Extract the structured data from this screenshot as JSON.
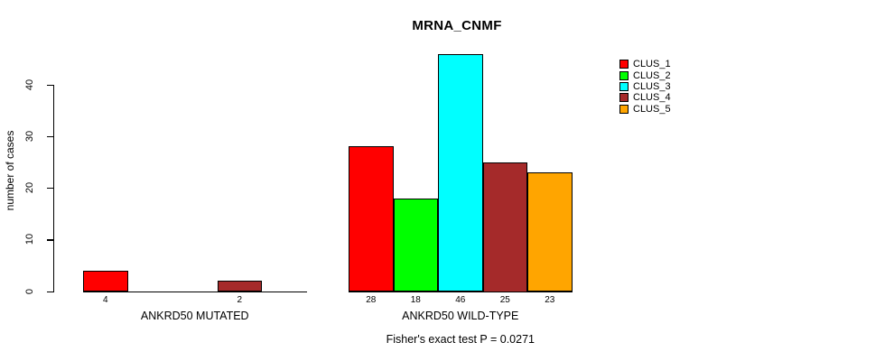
{
  "chart_data": {
    "type": "bar",
    "title": "MRNA_CNMF",
    "ylabel": "number of cases",
    "xlabel": "",
    "yticks": [
      0,
      10,
      20,
      30,
      40
    ],
    "ylim": [
      0,
      46.7
    ],
    "grid": false,
    "legend_position": "right",
    "background": "#ffffff",
    "axis_color": "#000000",
    "bar_border_color": "#000000",
    "series": [
      {
        "name": "CLUS_1",
        "color": "#ff0000"
      },
      {
        "name": "CLUS_2",
        "color": "#00ff00"
      },
      {
        "name": "CLUS_3",
        "color": "#00ffff"
      },
      {
        "name": "CLUS_4",
        "color": "#a52a2a"
      },
      {
        "name": "CLUS_5",
        "color": "#ffa500"
      }
    ],
    "groups": [
      {
        "label": "ANKRD50 MUTATED",
        "values": [
          4,
          0,
          0,
          2,
          0
        ]
      },
      {
        "label": "ANKRD50 WILD-TYPE",
        "values": [
          28,
          18,
          46,
          25,
          23
        ]
      }
    ],
    "subtitle": "Fisher's exact test P = 0.0271"
  }
}
